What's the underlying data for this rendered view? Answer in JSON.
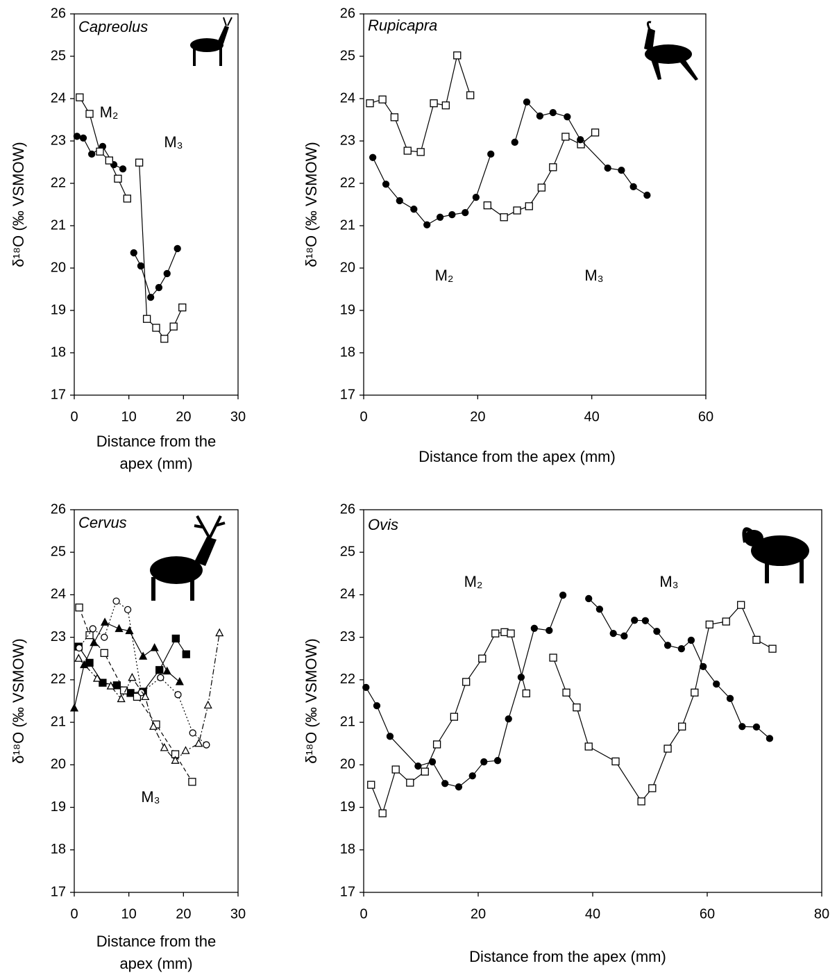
{
  "chart_data": [
    {
      "type": "line",
      "title": "Capreolus",
      "xlabel": "Distance from the apex (mm)",
      "ylabel": "δ¹⁸O (‰ VSMOW)",
      "xlim": [
        0,
        30
      ],
      "xticks": [
        0,
        10,
        20,
        30
      ],
      "ylim": [
        17,
        26
      ],
      "yticks": [
        17,
        18,
        19,
        20,
        21,
        22,
        23,
        24,
        25,
        26
      ],
      "annotations": [
        "M₂",
        "M₃"
      ],
      "series": [
        {
          "marker": "circle",
          "fill": "#000000",
          "color": "#000000",
          "dash": "solid",
          "x": [
            0.5,
            1.65,
            3.2,
            5.2,
            7.25,
            8.9,
            null,
            10.9,
            12.2,
            14.0,
            15.5,
            17.0,
            18.9
          ],
          "values": [
            23.11,
            23.07,
            22.69,
            22.87,
            22.44,
            22.34,
            null,
            20.36,
            20.05,
            19.31,
            19.54,
            19.87,
            20.46
          ]
        },
        {
          "marker": "square",
          "fill": "#ffffff",
          "color": "#000000",
          "dash": "solid",
          "x": [
            1.0,
            2.8,
            4.7,
            6.4,
            8.0,
            9.7,
            null,
            11.9,
            13.3,
            15.0,
            16.5,
            18.2,
            19.8
          ],
          "values": [
            24.03,
            23.64,
            22.75,
            22.54,
            22.11,
            21.64,
            null,
            22.49,
            18.8,
            18.59,
            18.33,
            18.62,
            19.07
          ]
        }
      ]
    },
    {
      "type": "line",
      "title": "Rupicapra",
      "xlabel": "Distance from the apex (mm)",
      "ylabel": "δ¹⁸O (‰ VSMOW)",
      "xlim": [
        0,
        60
      ],
      "xticks": [
        0,
        20,
        40,
        60
      ],
      "ylim": [
        17,
        26
      ],
      "yticks": [
        17,
        18,
        19,
        20,
        21,
        22,
        23,
        24,
        25,
        26
      ],
      "annotations": [
        "M₂",
        "M₃"
      ],
      "series": [
        {
          "marker": "square",
          "fill": "#ffffff",
          "color": "#000000",
          "dash": "solid",
          "x": [
            1.1,
            3.3,
            5.4,
            7.7,
            10.0,
            12.3,
            14.4,
            16.4,
            18.7,
            null,
            21.7,
            24.6,
            26.9,
            29.0,
            31.2,
            33.2,
            35.4,
            38.1,
            40.6
          ],
          "values": [
            23.89,
            23.98,
            23.56,
            22.77,
            22.74,
            23.89,
            23.84,
            25.02,
            24.08,
            null,
            21.48,
            21.2,
            21.36,
            21.46,
            21.9,
            22.38,
            23.1,
            22.92,
            23.2
          ]
        },
        {
          "marker": "circle",
          "fill": "#000000",
          "color": "#000000",
          "dash": "solid",
          "x": [
            1.6,
            3.9,
            6.3,
            8.8,
            11.1,
            13.4,
            15.5,
            17.8,
            19.7,
            22.3,
            null,
            26.5,
            28.6,
            30.9,
            33.2,
            35.7,
            38.0,
            42.8,
            45.2,
            47.3,
            49.7
          ],
          "values": [
            22.61,
            21.98,
            21.59,
            21.39,
            21.02,
            21.2,
            21.26,
            21.31,
            21.67,
            22.69,
            null,
            22.97,
            23.92,
            23.59,
            23.67,
            23.57,
            23.03,
            22.36,
            22.31,
            21.92,
            21.72
          ]
        }
      ]
    },
    {
      "type": "line",
      "title": "Cervus",
      "xlabel": "Distance from the apex (mm)",
      "ylabel": "δ¹⁸O (‰ VSMOW)",
      "xlim": [
        0,
        30
      ],
      "xticks": [
        0,
        10,
        20,
        30
      ],
      "ylim": [
        17,
        26
      ],
      "yticks": [
        17,
        18,
        19,
        20,
        21,
        22,
        23,
        24,
        25,
        26
      ],
      "annotations": [
        "M₃"
      ],
      "series": [
        {
          "marker": "triangle",
          "fill": "#000000",
          "color": "#000000",
          "dash": "solid",
          "x": [
            0,
            1.8,
            3.6,
            5.6,
            8.2,
            10.1,
            12.6,
            14.7,
            17.0,
            19.3
          ],
          "values": [
            21.33,
            22.35,
            22.87,
            23.35,
            23.2,
            23.15,
            22.55,
            22.75,
            22.2,
            21.95
          ]
        },
        {
          "marker": "square",
          "fill": "#000000",
          "color": "#000000",
          "dash": "solid",
          "x": [
            0.8,
            2.8,
            5.2,
            7.8,
            10.3,
            12.6,
            15.6,
            18.6,
            20.5
          ],
          "values": [
            22.78,
            22.4,
            21.93,
            21.87,
            21.69,
            21.72,
            22.23,
            22.97,
            22.6
          ]
        },
        {
          "marker": "square",
          "fill": "#ffffff",
          "color": "#000000",
          "dash": "dashed",
          "x": [
            0.9,
            2.8,
            5.5,
            9.1,
            11.5,
            15.0,
            18.5,
            21.6
          ],
          "values": [
            23.7,
            23.05,
            22.63,
            21.75,
            21.6,
            20.95,
            20.25,
            19.6
          ]
        },
        {
          "marker": "circle",
          "fill": "#ffffff",
          "color": "#000000",
          "dash": "dotted",
          "x": [
            0.9,
            3.4,
            5.5,
            7.7,
            9.8,
            12.3,
            15.8,
            19.0,
            21.7,
            24.2
          ],
          "values": [
            22.75,
            23.2,
            23.0,
            23.85,
            23.65,
            21.7,
            22.05,
            21.65,
            20.75,
            20.47
          ]
        },
        {
          "marker": "triangle",
          "fill": "#ffffff",
          "color": "#000000",
          "dash": "dashdot",
          "x": [
            0.8,
            4.2,
            6.7,
            8.6,
            10.6,
            13.0,
            14.5,
            16.5,
            18.5,
            20.4,
            22.8,
            24.5,
            26.6
          ],
          "values": [
            22.5,
            22.03,
            21.85,
            21.55,
            22.05,
            21.6,
            20.9,
            20.4,
            20.1,
            20.33,
            20.5,
            21.4,
            23.1
          ]
        }
      ]
    },
    {
      "type": "line",
      "title": "Ovis",
      "xlabel": "Distance from the apex (mm)",
      "ylabel": "δ¹⁸O (‰ VSMOW)",
      "xlim": [
        0,
        80
      ],
      "xticks": [
        0,
        20,
        40,
        60,
        80
      ],
      "ylim": [
        17,
        26
      ],
      "yticks": [
        17,
        18,
        19,
        20,
        21,
        22,
        23,
        24,
        25,
        26
      ],
      "annotations": [
        "M₂",
        "M₃"
      ],
      "series": [
        {
          "marker": "circle",
          "fill": "#000000",
          "color": "#000000",
          "dash": "solid",
          "x": [
            0.4,
            2.3,
            4.6,
            9.5,
            12.0,
            14.2,
            16.6,
            19.0,
            21.0,
            23.4,
            25.3,
            27.5,
            29.8,
            32.4,
            34.8,
            null,
            39.3,
            41.2,
            43.6,
            45.5,
            47.3,
            49.2,
            51.2,
            53.1,
            55.5,
            57.2,
            59.3,
            61.6,
            64.0,
            66.1,
            68.6,
            70.9
          ],
          "values": [
            21.82,
            21.39,
            20.67,
            19.97,
            20.07,
            19.56,
            19.48,
            19.74,
            20.07,
            20.1,
            21.08,
            22.06,
            23.21,
            23.16,
            23.99,
            null,
            23.91,
            23.66,
            23.09,
            23.03,
            23.4,
            23.39,
            23.14,
            22.81,
            22.73,
            22.93,
            22.31,
            21.9,
            21.56,
            20.9,
            20.89,
            20.62
          ]
        },
        {
          "marker": "square",
          "fill": "#ffffff",
          "color": "#000000",
          "dash": "solid",
          "x": [
            1.3,
            3.3,
            5.6,
            8.1,
            10.7,
            12.8,
            15.8,
            17.9,
            20.7,
            23.0,
            24.6,
            25.7,
            28.4,
            null,
            33.1,
            35.4,
            37.2,
            39.3,
            44.0,
            48.5,
            50.4,
            53.1,
            55.6,
            57.8,
            60.4,
            63.3,
            65.9,
            68.6,
            71.4
          ],
          "values": [
            19.53,
            18.86,
            19.89,
            19.58,
            19.84,
            20.48,
            21.13,
            21.95,
            22.5,
            23.09,
            23.12,
            23.09,
            21.68,
            null,
            22.52,
            21.7,
            21.35,
            20.43,
            20.08,
            19.14,
            19.45,
            20.38,
            20.9,
            21.7,
            23.3,
            23.37,
            23.76,
            22.94,
            22.73
          ]
        }
      ]
    }
  ]
}
